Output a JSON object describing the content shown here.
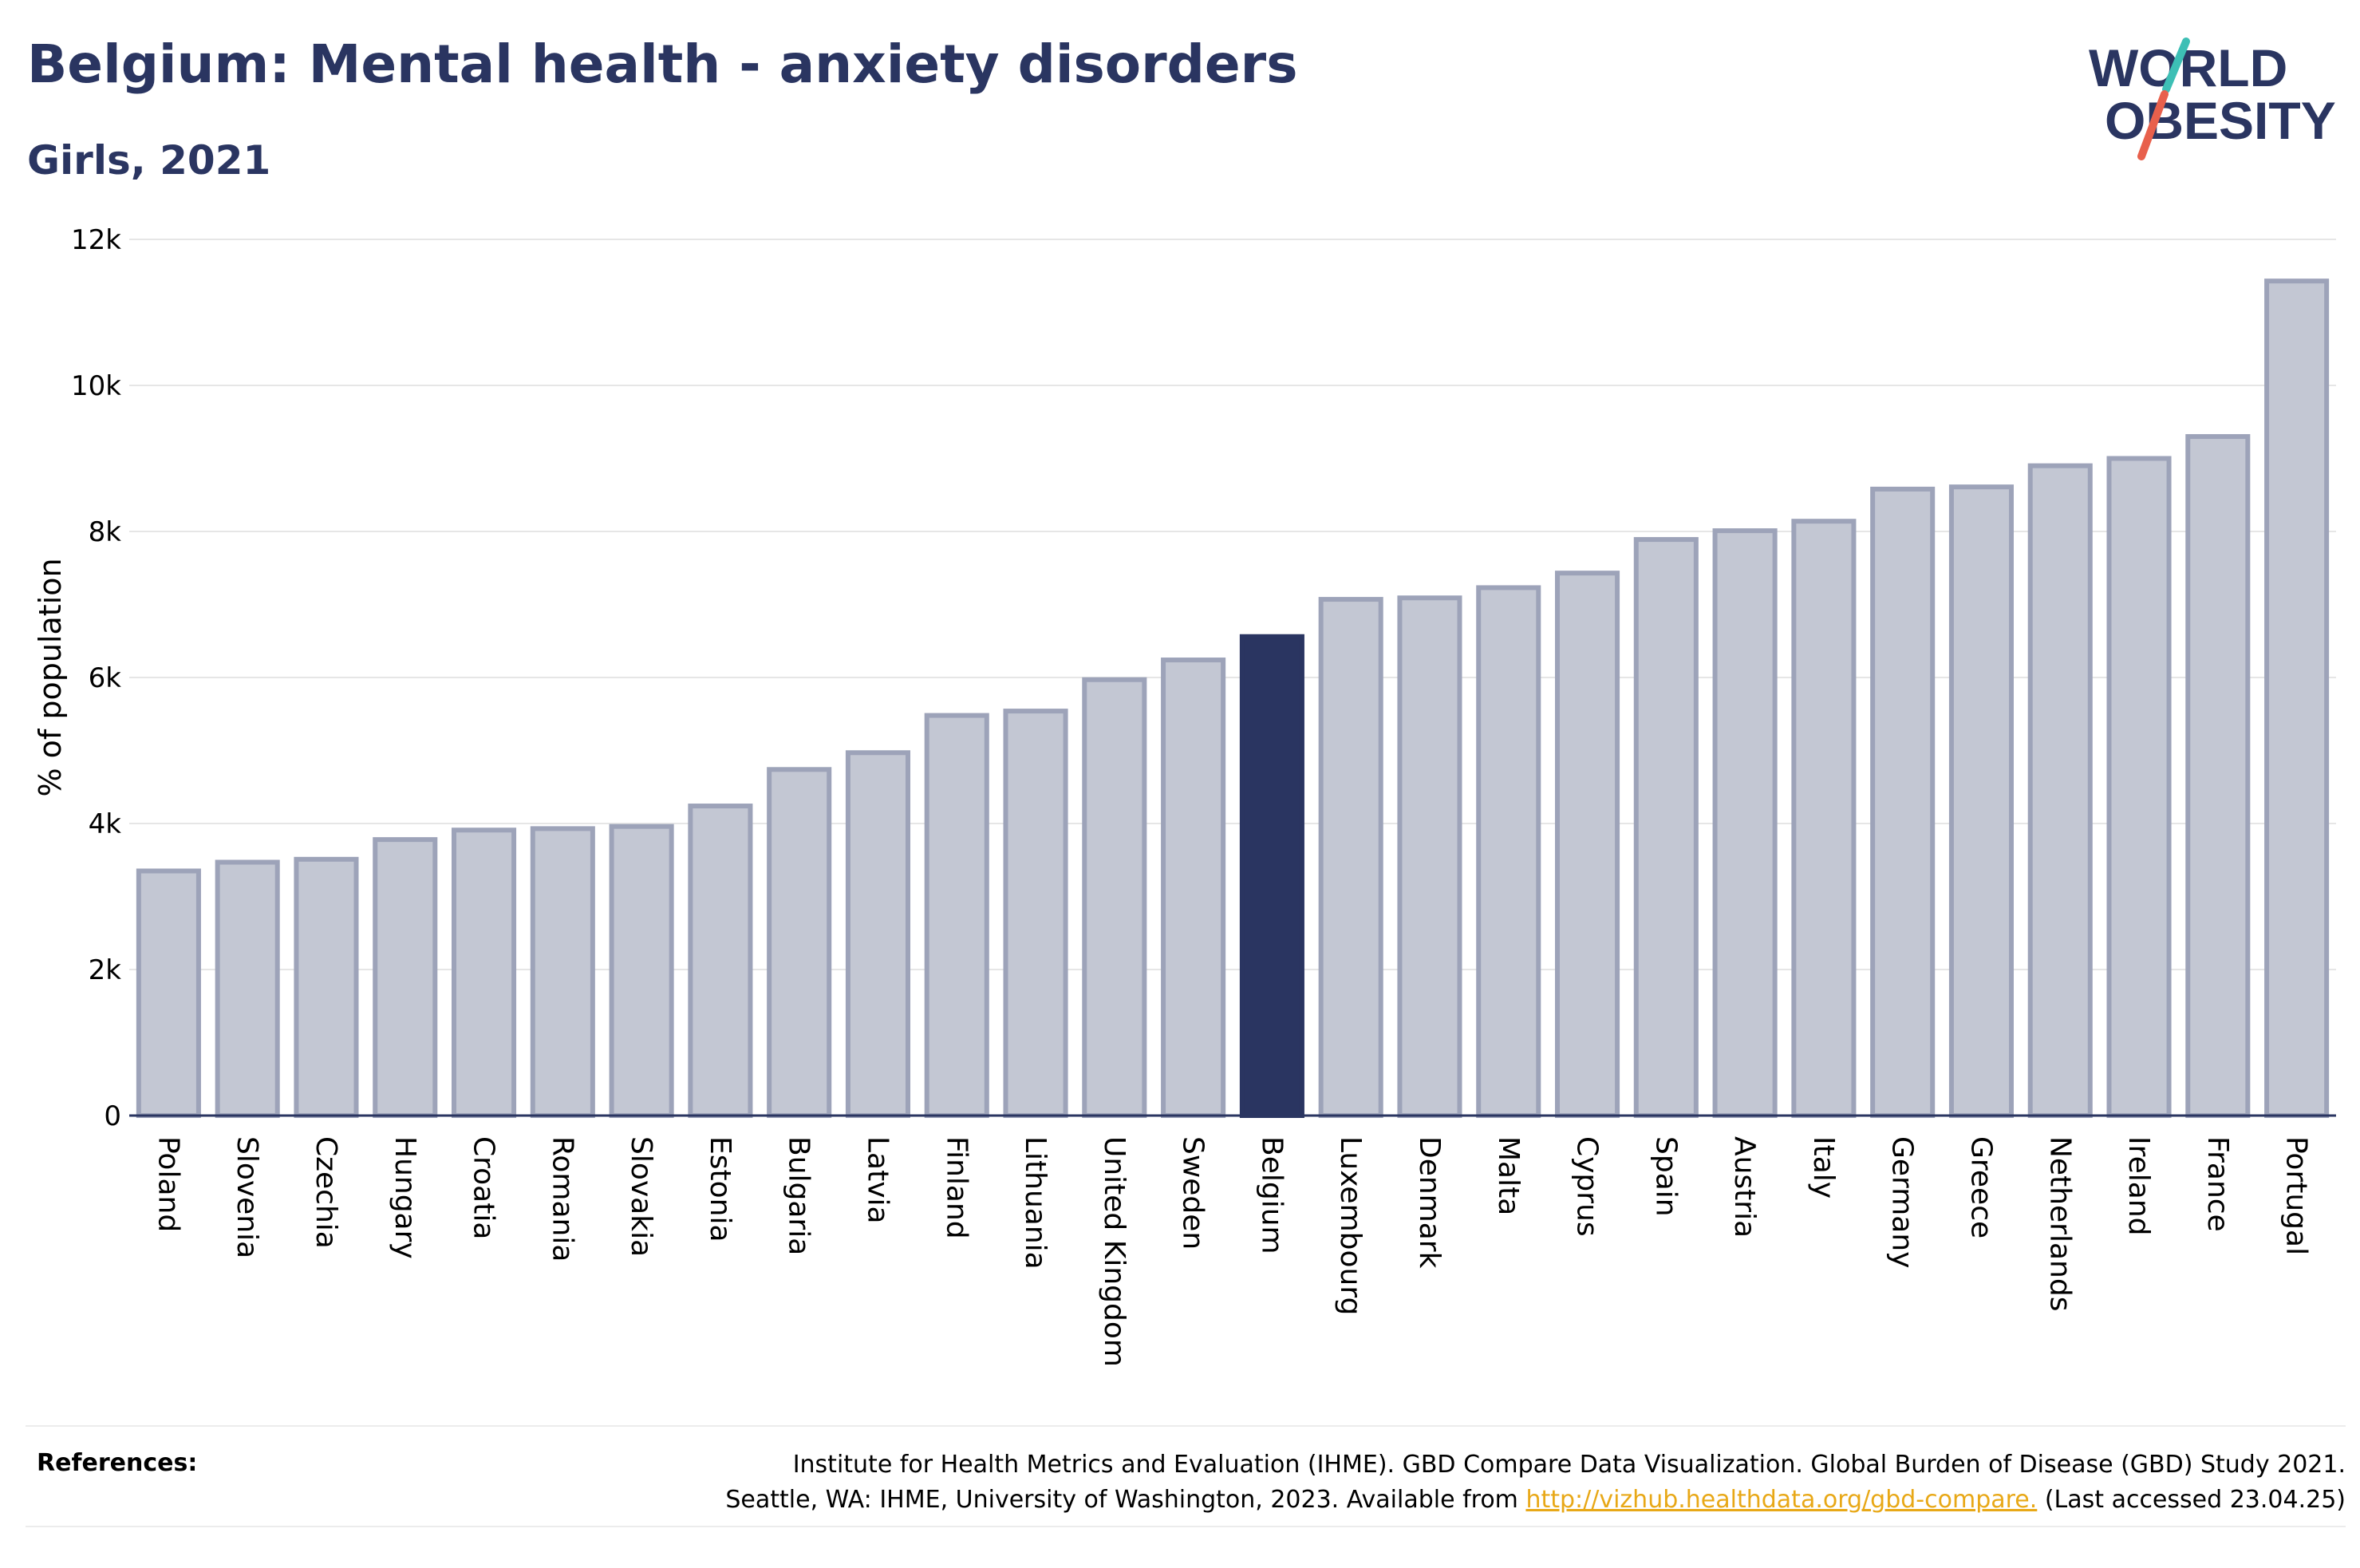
{
  "header": {
    "title": "Belgium: Mental health - anxiety disorders",
    "subtitle": "Girls, 2021"
  },
  "logo": {
    "line1": "WORLD",
    "line2": "OBESITY",
    "colors": {
      "text": "#2a3561",
      "slash_teal": "#3dbfb5",
      "slash_red": "#e8604c"
    }
  },
  "chart_data": {
    "type": "bar",
    "title": "Belgium: Mental health - anxiety disorders",
    "subtitle": "Girls, 2021",
    "ylabel": "% of population",
    "xlabel": "",
    "ylim": [
      0,
      12000
    ],
    "yticks": [
      0,
      2000,
      4000,
      6000,
      8000,
      10000,
      12000
    ],
    "ytick_labels": [
      "0",
      "2k",
      "4k",
      "6k",
      "8k",
      "10k",
      "12k"
    ],
    "grid": true,
    "highlight": "Belgium",
    "colors": {
      "bar": "#c3c7d3",
      "bar_border": "#9da3b9",
      "highlight": "#2a3561",
      "grid": "#e6e6e6",
      "axis": "#2a3561"
    },
    "categories": [
      "Poland",
      "Slovenia",
      "Czechia",
      "Hungary",
      "Croatia",
      "Romania",
      "Slovakia",
      "Estonia",
      "Bulgaria",
      "Latvia",
      "Finland",
      "Lithuania",
      "United Kingdom",
      "Sweden",
      "Belgium",
      "Luxembourg",
      "Denmark",
      "Malta",
      "Cyprus",
      "Spain",
      "Austria",
      "Italy",
      "Germany",
      "Greece",
      "Netherlands",
      "Ireland",
      "France",
      "Portugal"
    ],
    "values": [
      3350,
      3470,
      3510,
      3780,
      3910,
      3930,
      3960,
      4240,
      4740,
      4970,
      5480,
      5540,
      5970,
      6240,
      6560,
      7070,
      7090,
      7230,
      7430,
      7890,
      8010,
      8140,
      8580,
      8610,
      8900,
      9000,
      9300,
      11430
    ]
  },
  "references": {
    "label": "References:",
    "line1": "Institute for Health Metrics and Evaluation (IHME). GBD Compare Data Visualization. Global Burden of Disease (GBD) Study 2021.",
    "line2_prefix": "Seattle, WA: IHME, University of Washington, 2023. Available from ",
    "link": "http://vizhub.healthdata.org/gbd-compare.",
    "line2_suffix": " (Last accessed 23.04.25)"
  }
}
